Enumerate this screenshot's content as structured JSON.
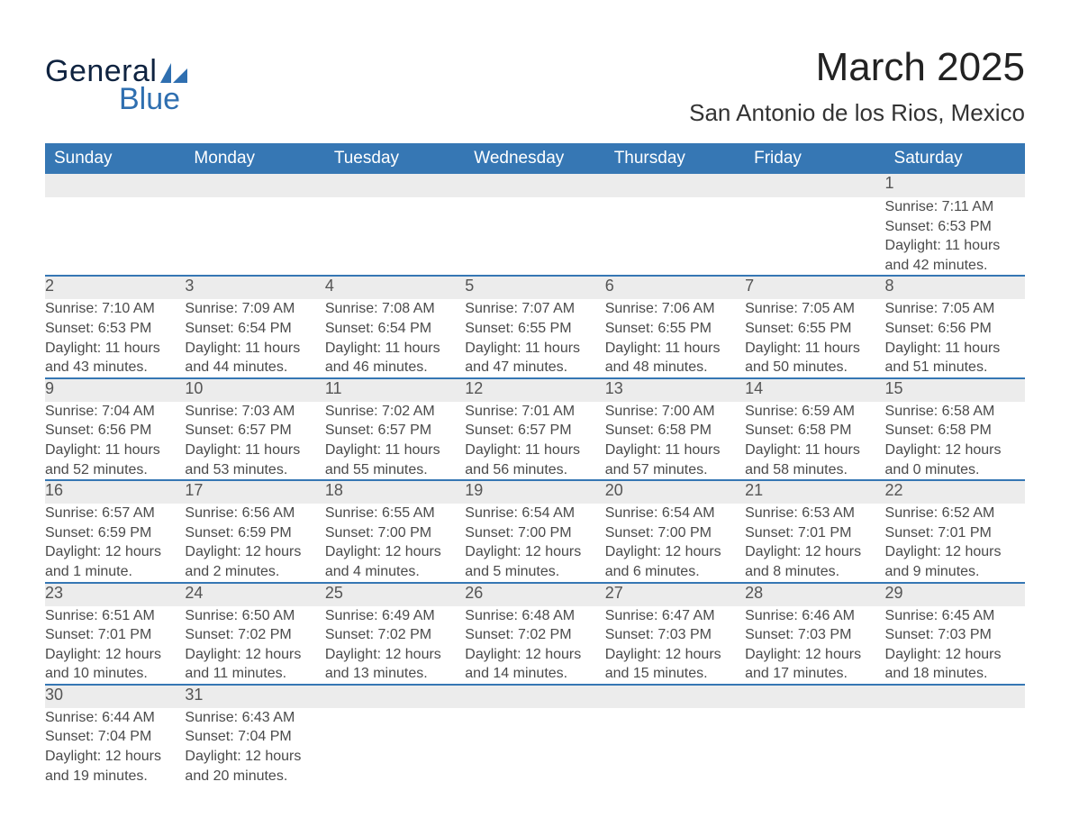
{
  "brand": {
    "word1": "General",
    "word2": "Blue",
    "accent_color": "#2f6fb0",
    "dark_color": "#0f2340"
  },
  "title": "March 2025",
  "location": "San Antonio de los Rios, Mexico",
  "colors": {
    "header_bg": "#3677b4",
    "header_fg": "#ffffff",
    "daynum_bg": "#ececec",
    "row_divider": "#3677b4",
    "text": "#4a4a4a",
    "page_bg": "#ffffff"
  },
  "typography": {
    "title_fontsize_pt": 33,
    "location_fontsize_pt": 20,
    "header_fontsize_pt": 14,
    "daynum_fontsize_pt": 14,
    "body_fontsize_pt": 12
  },
  "layout": {
    "columns": 7,
    "weeks": 6,
    "first_day_column_index": 6
  },
  "weekdays": [
    "Sunday",
    "Monday",
    "Tuesday",
    "Wednesday",
    "Thursday",
    "Friday",
    "Saturday"
  ],
  "weeks": [
    [
      null,
      null,
      null,
      null,
      null,
      null,
      {
        "n": "1",
        "sunrise": "Sunrise: 7:11 AM",
        "sunset": "Sunset: 6:53 PM",
        "d1": "Daylight: 11 hours",
        "d2": "and 42 minutes."
      }
    ],
    [
      {
        "n": "2",
        "sunrise": "Sunrise: 7:10 AM",
        "sunset": "Sunset: 6:53 PM",
        "d1": "Daylight: 11 hours",
        "d2": "and 43 minutes."
      },
      {
        "n": "3",
        "sunrise": "Sunrise: 7:09 AM",
        "sunset": "Sunset: 6:54 PM",
        "d1": "Daylight: 11 hours",
        "d2": "and 44 minutes."
      },
      {
        "n": "4",
        "sunrise": "Sunrise: 7:08 AM",
        "sunset": "Sunset: 6:54 PM",
        "d1": "Daylight: 11 hours",
        "d2": "and 46 minutes."
      },
      {
        "n": "5",
        "sunrise": "Sunrise: 7:07 AM",
        "sunset": "Sunset: 6:55 PM",
        "d1": "Daylight: 11 hours",
        "d2": "and 47 minutes."
      },
      {
        "n": "6",
        "sunrise": "Sunrise: 7:06 AM",
        "sunset": "Sunset: 6:55 PM",
        "d1": "Daylight: 11 hours",
        "d2": "and 48 minutes."
      },
      {
        "n": "7",
        "sunrise": "Sunrise: 7:05 AM",
        "sunset": "Sunset: 6:55 PM",
        "d1": "Daylight: 11 hours",
        "d2": "and 50 minutes."
      },
      {
        "n": "8",
        "sunrise": "Sunrise: 7:05 AM",
        "sunset": "Sunset: 6:56 PM",
        "d1": "Daylight: 11 hours",
        "d2": "and 51 minutes."
      }
    ],
    [
      {
        "n": "9",
        "sunrise": "Sunrise: 7:04 AM",
        "sunset": "Sunset: 6:56 PM",
        "d1": "Daylight: 11 hours",
        "d2": "and 52 minutes."
      },
      {
        "n": "10",
        "sunrise": "Sunrise: 7:03 AM",
        "sunset": "Sunset: 6:57 PM",
        "d1": "Daylight: 11 hours",
        "d2": "and 53 minutes."
      },
      {
        "n": "11",
        "sunrise": "Sunrise: 7:02 AM",
        "sunset": "Sunset: 6:57 PM",
        "d1": "Daylight: 11 hours",
        "d2": "and 55 minutes."
      },
      {
        "n": "12",
        "sunrise": "Sunrise: 7:01 AM",
        "sunset": "Sunset: 6:57 PM",
        "d1": "Daylight: 11 hours",
        "d2": "and 56 minutes."
      },
      {
        "n": "13",
        "sunrise": "Sunrise: 7:00 AM",
        "sunset": "Sunset: 6:58 PM",
        "d1": "Daylight: 11 hours",
        "d2": "and 57 minutes."
      },
      {
        "n": "14",
        "sunrise": "Sunrise: 6:59 AM",
        "sunset": "Sunset: 6:58 PM",
        "d1": "Daylight: 11 hours",
        "d2": "and 58 minutes."
      },
      {
        "n": "15",
        "sunrise": "Sunrise: 6:58 AM",
        "sunset": "Sunset: 6:58 PM",
        "d1": "Daylight: 12 hours",
        "d2": "and 0 minutes."
      }
    ],
    [
      {
        "n": "16",
        "sunrise": "Sunrise: 6:57 AM",
        "sunset": "Sunset: 6:59 PM",
        "d1": "Daylight: 12 hours",
        "d2": "and 1 minute."
      },
      {
        "n": "17",
        "sunrise": "Sunrise: 6:56 AM",
        "sunset": "Sunset: 6:59 PM",
        "d1": "Daylight: 12 hours",
        "d2": "and 2 minutes."
      },
      {
        "n": "18",
        "sunrise": "Sunrise: 6:55 AM",
        "sunset": "Sunset: 7:00 PM",
        "d1": "Daylight: 12 hours",
        "d2": "and 4 minutes."
      },
      {
        "n": "19",
        "sunrise": "Sunrise: 6:54 AM",
        "sunset": "Sunset: 7:00 PM",
        "d1": "Daylight: 12 hours",
        "d2": "and 5 minutes."
      },
      {
        "n": "20",
        "sunrise": "Sunrise: 6:54 AM",
        "sunset": "Sunset: 7:00 PM",
        "d1": "Daylight: 12 hours",
        "d2": "and 6 minutes."
      },
      {
        "n": "21",
        "sunrise": "Sunrise: 6:53 AM",
        "sunset": "Sunset: 7:01 PM",
        "d1": "Daylight: 12 hours",
        "d2": "and 8 minutes."
      },
      {
        "n": "22",
        "sunrise": "Sunrise: 6:52 AM",
        "sunset": "Sunset: 7:01 PM",
        "d1": "Daylight: 12 hours",
        "d2": "and 9 minutes."
      }
    ],
    [
      {
        "n": "23",
        "sunrise": "Sunrise: 6:51 AM",
        "sunset": "Sunset: 7:01 PM",
        "d1": "Daylight: 12 hours",
        "d2": "and 10 minutes."
      },
      {
        "n": "24",
        "sunrise": "Sunrise: 6:50 AM",
        "sunset": "Sunset: 7:02 PM",
        "d1": "Daylight: 12 hours",
        "d2": "and 11 minutes."
      },
      {
        "n": "25",
        "sunrise": "Sunrise: 6:49 AM",
        "sunset": "Sunset: 7:02 PM",
        "d1": "Daylight: 12 hours",
        "d2": "and 13 minutes."
      },
      {
        "n": "26",
        "sunrise": "Sunrise: 6:48 AM",
        "sunset": "Sunset: 7:02 PM",
        "d1": "Daylight: 12 hours",
        "d2": "and 14 minutes."
      },
      {
        "n": "27",
        "sunrise": "Sunrise: 6:47 AM",
        "sunset": "Sunset: 7:03 PM",
        "d1": "Daylight: 12 hours",
        "d2": "and 15 minutes."
      },
      {
        "n": "28",
        "sunrise": "Sunrise: 6:46 AM",
        "sunset": "Sunset: 7:03 PM",
        "d1": "Daylight: 12 hours",
        "d2": "and 17 minutes."
      },
      {
        "n": "29",
        "sunrise": "Sunrise: 6:45 AM",
        "sunset": "Sunset: 7:03 PM",
        "d1": "Daylight: 12 hours",
        "d2": "and 18 minutes."
      }
    ],
    [
      {
        "n": "30",
        "sunrise": "Sunrise: 6:44 AM",
        "sunset": "Sunset: 7:04 PM",
        "d1": "Daylight: 12 hours",
        "d2": "and 19 minutes."
      },
      {
        "n": "31",
        "sunrise": "Sunrise: 6:43 AM",
        "sunset": "Sunset: 7:04 PM",
        "d1": "Daylight: 12 hours",
        "d2": "and 20 minutes."
      },
      null,
      null,
      null,
      null,
      null
    ]
  ]
}
